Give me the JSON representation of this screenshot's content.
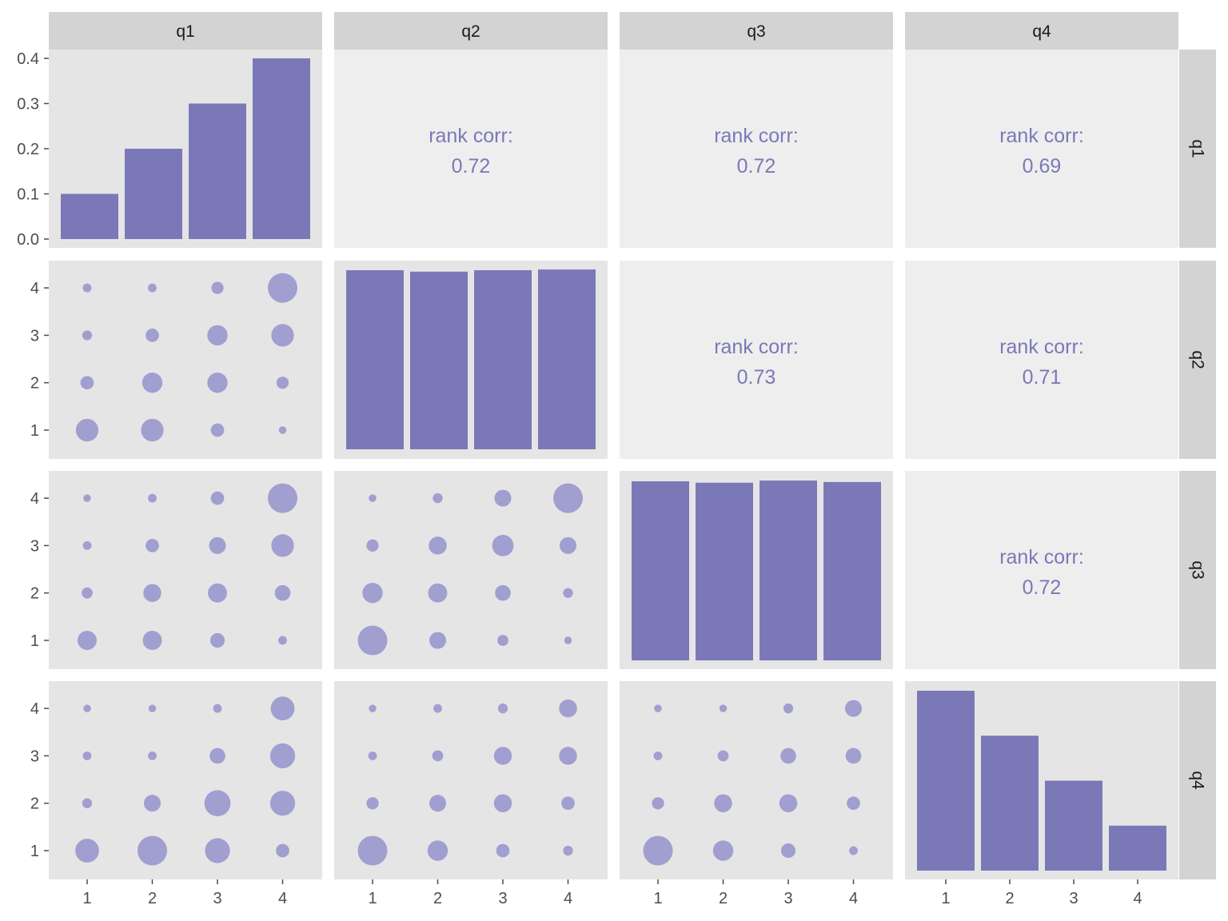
{
  "chart_data": {
    "type": "pairs-matrix",
    "variables": [
      "q1",
      "q2",
      "q3",
      "q4"
    ],
    "x_ticks": [
      "1",
      "2",
      "3",
      "4"
    ],
    "y_ticks_diag_first": [
      "0.0",
      "0.1",
      "0.2",
      "0.3",
      "0.4"
    ],
    "y_ticks_offdiag": [
      "1",
      "2",
      "3",
      "4"
    ],
    "diag_first_ylim": [
      0,
      0.4
    ],
    "diagonal": [
      {
        "var": "q1",
        "values": [
          0.1,
          0.2,
          0.3,
          0.4
        ]
      },
      {
        "var": "q2",
        "values": [
          0.25,
          0.248,
          0.25,
          0.251
        ]
      },
      {
        "var": "q3",
        "values": [
          0.25,
          0.248,
          0.251,
          0.249
        ]
      },
      {
        "var": "q4",
        "values": [
          0.4,
          0.3,
          0.2,
          0.1
        ]
      }
    ],
    "correlations": [
      {
        "row": "q1",
        "col": "q2",
        "label": "rank corr:",
        "value": "0.72"
      },
      {
        "row": "q1",
        "col": "q3",
        "label": "rank corr:",
        "value": "0.72"
      },
      {
        "row": "q1",
        "col": "q4",
        "label": "rank corr:",
        "value": "0.69"
      },
      {
        "row": "q2",
        "col": "q3",
        "label": "rank corr:",
        "value": "0.73"
      },
      {
        "row": "q2",
        "col": "q4",
        "label": "rank corr:",
        "value": "0.71"
      },
      {
        "row": "q3",
        "col": "q4",
        "label": "rank corr:",
        "value": "0.72"
      }
    ],
    "bubbles": [
      {
        "row": "q2",
        "col": "q1",
        "counts": [
          [
            14,
            14,
            6,
            1
          ],
          [
            6,
            12,
            12,
            5
          ],
          [
            3,
            6,
            12,
            14
          ],
          [
            2,
            2,
            5,
            20
          ]
        ]
      },
      {
        "row": "q3",
        "col": "q1",
        "counts": [
          [
            11,
            11,
            7,
            2
          ],
          [
            4,
            10,
            11,
            8
          ],
          [
            2,
            6,
            9,
            14
          ],
          [
            1,
            2,
            6,
            20
          ]
        ]
      },
      {
        "row": "q3",
        "col": "q2",
        "counts": [
          [
            20,
            9,
            4,
            1
          ],
          [
            12,
            11,
            8,
            3
          ],
          [
            5,
            10,
            13,
            9
          ],
          [
            1,
            3,
            9,
            20
          ]
        ]
      },
      {
        "row": "q4",
        "col": "q1",
        "counts": [
          [
            15,
            20,
            16,
            6
          ],
          [
            3,
            9,
            17,
            16
          ],
          [
            2,
            2,
            8,
            16
          ],
          [
            1,
            1,
            2,
            15
          ]
        ]
      },
      {
        "row": "q4",
        "col": "q2",
        "counts": [
          [
            20,
            12,
            6,
            3
          ],
          [
            5,
            9,
            10,
            6
          ],
          [
            2,
            4,
            10,
            10
          ],
          [
            1,
            2,
            3,
            10
          ]
        ]
      },
      {
        "row": "q4",
        "col": "q3",
        "counts": [
          [
            20,
            12,
            7,
            2
          ],
          [
            5,
            10,
            10,
            6
          ],
          [
            2,
            4,
            8,
            8
          ],
          [
            1,
            1,
            3,
            9
          ]
        ]
      }
    ],
    "colors": {
      "bar": "#7b78b8",
      "bubble": "#a19fd0",
      "corr_text": "#7b78b8",
      "panel_bg": "#e5e5e5",
      "corr_panel_bg": "#eeeeee",
      "strip_bg": "#d3d3d3",
      "axis_text": "#4d4d4d",
      "strip_text": "#1a1a1a"
    }
  }
}
